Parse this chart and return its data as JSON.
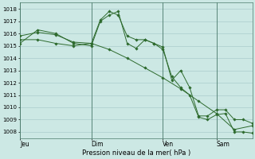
{
  "background_color": "#cce8e4",
  "plot_bg_color": "#cce8e4",
  "grid_color": "#aacccc",
  "line_color": "#2d6a2d",
  "xlabel": "Pression niveau de la mer( hPa )",
  "ylim": [
    1007.5,
    1018.5
  ],
  "yticks": [
    1008,
    1009,
    1010,
    1011,
    1012,
    1013,
    1014,
    1015,
    1016,
    1017,
    1018
  ],
  "xtick_labels": [
    "Jeu",
    "Dim",
    "Ven",
    "Sam"
  ],
  "xtick_positions": [
    0,
    32,
    64,
    88
  ],
  "total_points": 104,
  "vline_positions": [
    0,
    32,
    64,
    88
  ],
  "series": [
    {
      "x": [
        0,
        8,
        16,
        24,
        32,
        40,
        48,
        56,
        64,
        72,
        80,
        88,
        96,
        104
      ],
      "y": [
        1015.8,
        1016.1,
        1015.9,
        1015.3,
        1015.2,
        1014.7,
        1014.0,
        1013.2,
        1012.4,
        1011.5,
        1010.5,
        1009.5,
        1008.2,
        1008.5
      ]
    },
    {
      "x": [
        0,
        8,
        16,
        24,
        32,
        36,
        40,
        44,
        48,
        52,
        56,
        60,
        64,
        68,
        72,
        76,
        80,
        84,
        88,
        92,
        96,
        100,
        104
      ],
      "y": [
        1015.5,
        1015.5,
        1015.2,
        1015.0,
        1015.2,
        1017.1,
        1017.8,
        1017.5,
        1015.8,
        1015.5,
        1015.5,
        1015.2,
        1014.7,
        1012.5,
        1011.6,
        1011.0,
        1009.2,
        1009.0,
        1009.4,
        1009.5,
        1008.0,
        1008.0,
        1007.9
      ]
    },
    {
      "x": [
        0,
        8,
        16,
        24,
        32,
        36,
        40,
        44,
        48,
        52,
        56,
        60,
        64,
        68,
        72,
        76,
        80,
        84,
        88,
        92,
        96,
        100,
        104
      ],
      "y": [
        1015.2,
        1016.3,
        1016.0,
        1015.2,
        1015.0,
        1017.0,
        1017.5,
        1017.8,
        1015.2,
        1014.8,
        1015.5,
        1015.2,
        1014.9,
        1012.2,
        1013.0,
        1011.6,
        1009.3,
        1009.3,
        1009.8,
        1009.8,
        1009.0,
        1009.0,
        1008.7
      ]
    }
  ]
}
